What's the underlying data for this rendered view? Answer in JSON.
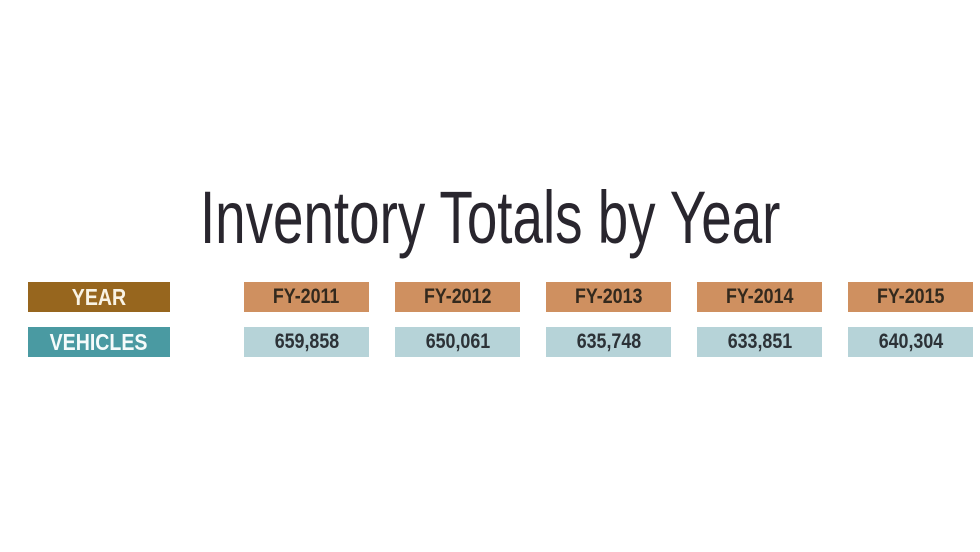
{
  "title": "Inventory Totals by Year",
  "table": {
    "year_label": "YEAR",
    "vehicles_label": "VEHICLES",
    "years": [
      "FY-2011",
      "FY-2012",
      "FY-2013",
      "FY-2014",
      "FY-2015"
    ],
    "vehicle_counts": [
      "659,858",
      "650,061",
      "635,748",
      "633,851",
      "640,304"
    ]
  },
  "colors": {
    "year_header_bg": "#97661e",
    "year_cell_bg": "#cf9060",
    "vehicles_header_bg": "#4a9aa2",
    "value_cell_bg": "#b6d3d8",
    "title_text": "#29262e"
  },
  "chart_data": {
    "type": "table",
    "title": "Inventory Totals by Year",
    "categories": [
      "FY-2011",
      "FY-2012",
      "FY-2013",
      "FY-2014",
      "FY-2015"
    ],
    "series": [
      {
        "name": "VEHICLES",
        "values": [
          659858,
          650061,
          635748,
          633851,
          640304
        ]
      }
    ],
    "row_labels": [
      "YEAR",
      "VEHICLES"
    ],
    "legend_position": "none",
    "grid": false
  }
}
